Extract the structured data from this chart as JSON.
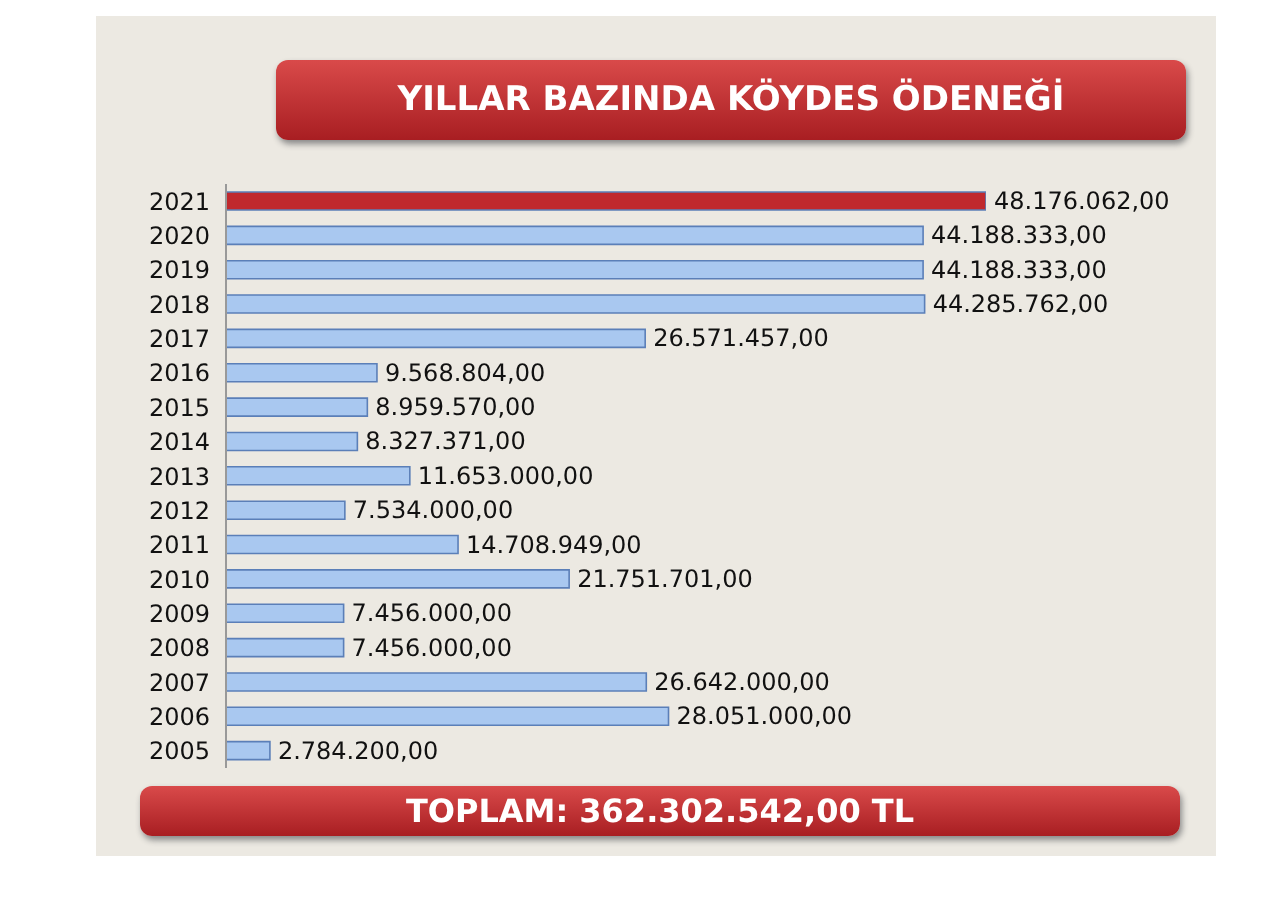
{
  "chart_data": {
    "type": "bar",
    "orientation": "horizontal",
    "title": "YILLAR BAZINDA KÖYDES ÖDENEĞİ",
    "categories": [
      "2021",
      "2020",
      "2019",
      "2018",
      "2017",
      "2016",
      "2015",
      "2014",
      "2013",
      "2012",
      "2011",
      "2010",
      "2009",
      "2008",
      "2007",
      "2006",
      "2005"
    ],
    "values": [
      48176062,
      44188333,
      44188333,
      44285762,
      26571457,
      9568804,
      8959570,
      8327371,
      11653000,
      7534000,
      14708949,
      21751701,
      7456000,
      7456000,
      26642000,
      28051000,
      2784200
    ],
    "value_labels": [
      "48.176.062,00",
      "44.188.333,00",
      "44.188.333,00",
      "44.285.762,00",
      "26.571.457,00",
      "9.568.804,00",
      "8.959.570,00",
      "8.327.371,00",
      "11.653.000,00",
      "7.534.000,00",
      "14.708.949,00",
      "21.751.701,00",
      "7.456.000,00",
      "7.456.000,00",
      "26.642.000,00",
      "28.051.000,00",
      "2.784.200,00"
    ],
    "colors": [
      "#c0282d",
      "#a9c8f0",
      "#a9c8f0",
      "#a9c8f0",
      "#a9c8f0",
      "#a9c8f0",
      "#a9c8f0",
      "#a9c8f0",
      "#a9c8f0",
      "#a9c8f0",
      "#a9c8f0",
      "#a9c8f0",
      "#a9c8f0",
      "#a9c8f0",
      "#a9c8f0",
      "#a9c8f0",
      "#a9c8f0"
    ],
    "annotations": [
      "TOPLAM: 362.302.542,00 TL"
    ]
  }
}
